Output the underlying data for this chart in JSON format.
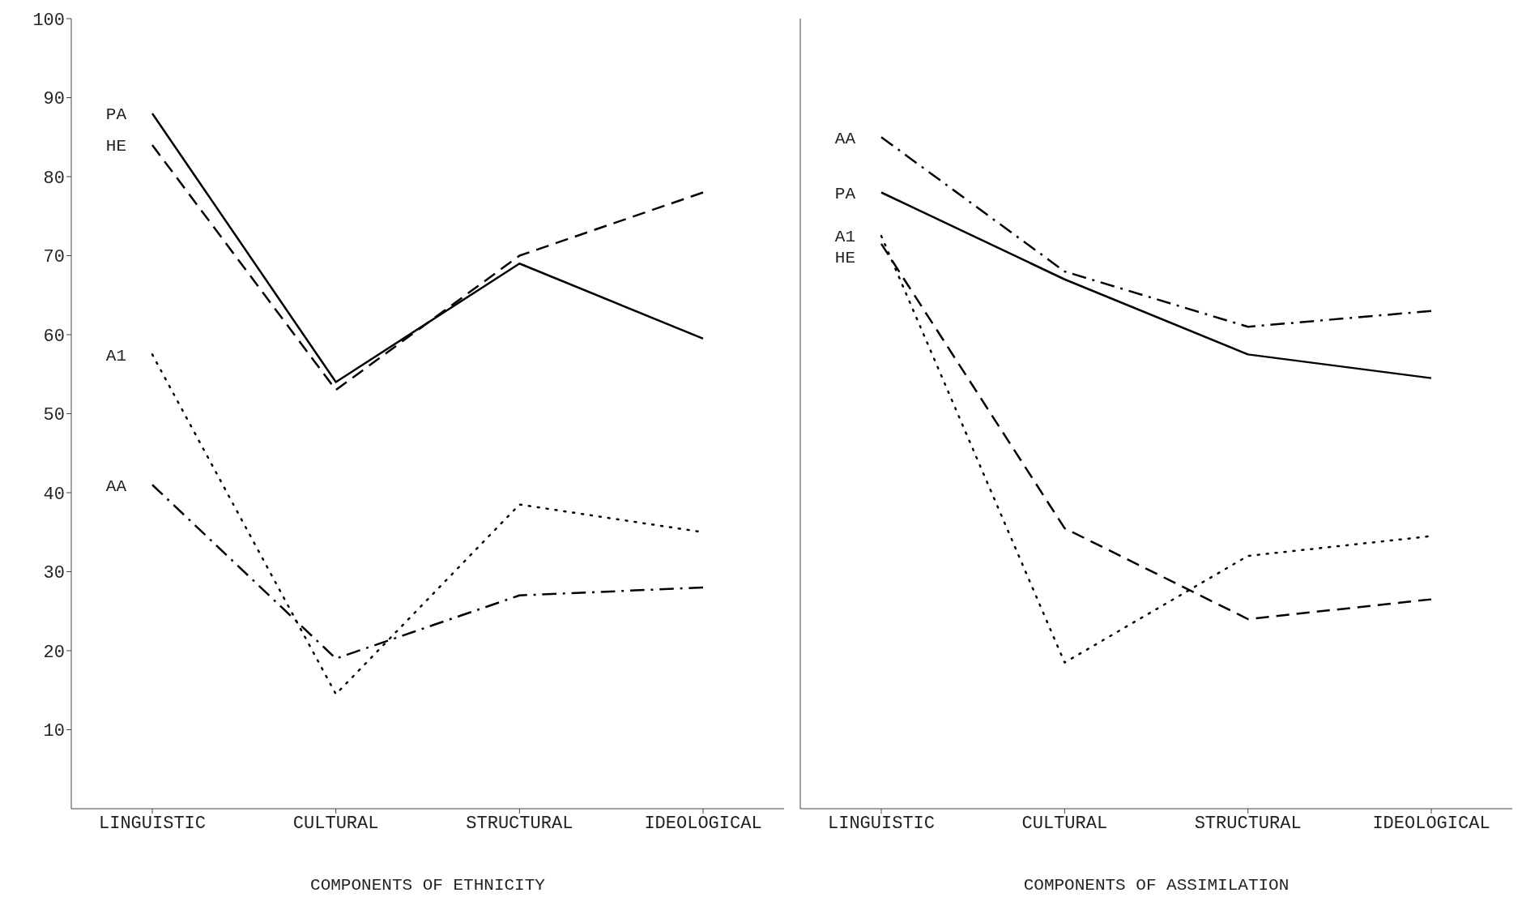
{
  "chart_data": [
    {
      "type": "line",
      "categories": [
        "LINGUISTIC",
        "CULTURAL",
        "STRUCTURAL",
        "IDEOLOGICAL"
      ],
      "xlabel": "COMPONENTS OF ETHNICITY",
      "ylim": [
        0,
        100
      ],
      "yticks": [
        10,
        20,
        30,
        40,
        50,
        60,
        70,
        80,
        90,
        100
      ],
      "series": [
        {
          "name": "PA",
          "color": "#000000",
          "line_style": "solid",
          "values": [
            88,
            54,
            69,
            59.5
          ]
        },
        {
          "name": "HE",
          "color": "#000000",
          "line_style": "dashed",
          "values": [
            84,
            53,
            70,
            78
          ]
        },
        {
          "name": "A1",
          "color": "#000000",
          "line_style": "dotted",
          "values": [
            57.5,
            14.5,
            38.5,
            35
          ]
        },
        {
          "name": "AA",
          "color": "#000000",
          "line_style": "dashdot",
          "values": [
            41,
            19,
            27,
            28
          ]
        }
      ]
    },
    {
      "type": "line",
      "categories": [
        "LINGUISTIC",
        "CULTURAL",
        "STRUCTURAL",
        "IDEOLOGICAL"
      ],
      "xlabel": "COMPONENTS OF ASSIMILATION",
      "ylim": [
        0,
        100
      ],
      "yticks": [
        10,
        20,
        30,
        40,
        50,
        60,
        70,
        80,
        90,
        100
      ],
      "tick_labels": "x",
      "series": [
        {
          "name": "AA",
          "color": "#000000",
          "line_style": "dashdot",
          "values": [
            85,
            68,
            61,
            63
          ]
        },
        {
          "name": "PA",
          "color": "#000000",
          "line_style": "solid",
          "values": [
            78,
            67,
            57.5,
            54.5
          ]
        },
        {
          "name": "A1",
          "color": "#000000",
          "line_style": "dotted",
          "values": [
            72.5,
            18.5,
            32,
            34.5
          ]
        },
        {
          "name": "HE",
          "color": "#000000",
          "line_style": "dashed",
          "values": [
            71.5,
            35.5,
            24,
            26.5
          ]
        }
      ]
    }
  ]
}
